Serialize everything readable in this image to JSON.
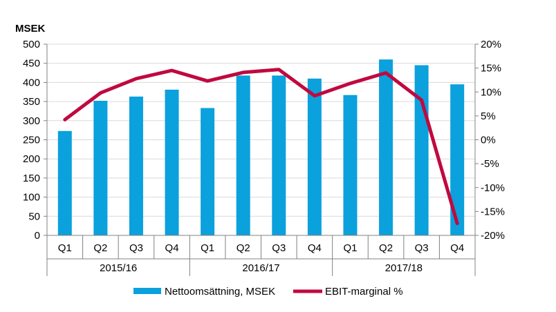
{
  "chart_data": {
    "type": "bar-line-combo",
    "ylabel_left": "MSEK",
    "quarters": [
      "Q1",
      "Q2",
      "Q3",
      "Q4",
      "Q1",
      "Q2",
      "Q3",
      "Q4",
      "Q1",
      "Q2",
      "Q3",
      "Q4"
    ],
    "years": [
      "2015/16",
      "2016/17",
      "2017/18"
    ],
    "left_axis": {
      "min": 0,
      "max": 500,
      "ticks": [
        "0",
        "50",
        "100",
        "150",
        "200",
        "250",
        "300",
        "350",
        "400",
        "450",
        "500"
      ]
    },
    "right_axis": {
      "min": -20,
      "max": 20,
      "ticks": [
        "-20%",
        "-15%",
        "-10%",
        "-5%",
        "0%",
        "5%",
        "10%",
        "15%",
        "20%"
      ]
    },
    "grid": true,
    "legend_position": "bottom",
    "series": [
      {
        "name": "Nettoomsättning, MSEK",
        "type": "bar",
        "axis": "left",
        "color": "#0aa1dd",
        "values": [
          273,
          352,
          363,
          381,
          333,
          418,
          418,
          410,
          367,
          460,
          445,
          395
        ]
      },
      {
        "name": "EBIT-marginal %",
        "type": "line",
        "axis": "right",
        "color": "#c0093f",
        "values": [
          4.2,
          9.8,
          12.8,
          14.5,
          12.3,
          14.1,
          14.7,
          9.2,
          11.8,
          14.0,
          8.3,
          -17.5
        ]
      }
    ]
  }
}
